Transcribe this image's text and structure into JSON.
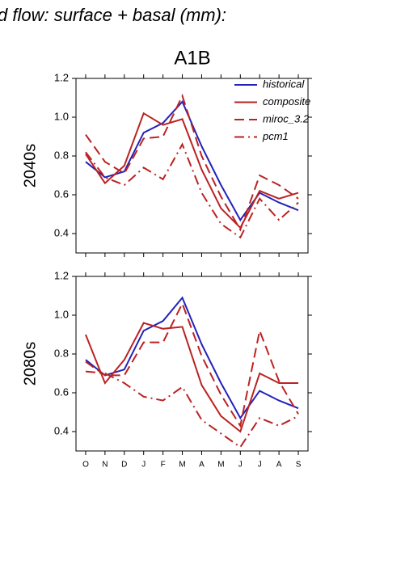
{
  "chart_data": {
    "type": "line",
    "title": "d flow: surface + basal (mm):",
    "subtitle": "A1B",
    "categories": [
      "O",
      "N",
      "D",
      "J",
      "F",
      "M",
      "A",
      "M",
      "J",
      "J",
      "A",
      "S"
    ],
    "legend": "upper right",
    "panels": [
      {
        "ylabel": "2040s",
        "ylim": [
          0.3,
          1.2
        ],
        "yticks": [
          0.4,
          0.6,
          0.8,
          {
            "value": 1,
            "label": "1.0"
          },
          1.2
        ],
        "series": [
          {
            "name": "historical",
            "color": "#2222bb",
            "linestyle": "solid",
            "values": [
              0.77,
              0.69,
              0.72,
              0.92,
              0.97,
              1.08,
              0.85,
              0.65,
              0.47,
              0.61,
              0.56,
              0.52
            ]
          },
          {
            "name": "composite",
            "color": "#bb2222",
            "linestyle": "solid",
            "values": [
              0.81,
              0.66,
              0.75,
              1.02,
              0.96,
              0.99,
              0.73,
              0.53,
              0.43,
              0.62,
              0.58,
              0.61
            ]
          },
          {
            "name": "miroc_3.2",
            "color": "#bb2222",
            "linestyle": "dashed",
            "values": [
              0.91,
              0.77,
              0.71,
              0.89,
              0.9,
              1.11,
              0.8,
              0.59,
              0.42,
              0.7,
              0.65,
              0.58
            ]
          },
          {
            "name": "pcm1",
            "color": "#bb2222",
            "linestyle": "dashdot",
            "values": [
              0.82,
              0.69,
              0.65,
              0.74,
              0.68,
              0.86,
              0.61,
              0.45,
              0.38,
              0.58,
              0.47,
              0.56
            ]
          }
        ]
      },
      {
        "ylabel": "2080s",
        "ylim": [
          0.3,
          1.2
        ],
        "yticks": [
          0.4,
          0.6,
          0.8,
          {
            "value": 1,
            "label": "1.0"
          },
          1.2
        ],
        "series": [
          {
            "color": "#2222bb",
            "linestyle": "solid",
            "values": [
              0.77,
              0.69,
              0.72,
              0.92,
              0.97,
              1.09,
              0.85,
              0.65,
              0.47,
              0.61,
              0.56,
              0.52
            ]
          },
          {
            "color": "#bb2222",
            "linestyle": "solid",
            "values": [
              0.9,
              0.65,
              0.77,
              0.96,
              0.93,
              0.94,
              0.64,
              0.48,
              0.4,
              0.7,
              0.65,
              0.65
            ]
          },
          {
            "color": "#bb2222",
            "linestyle": "dashed",
            "values": [
              0.76,
              0.69,
              0.69,
              0.86,
              0.86,
              1.06,
              0.79,
              0.59,
              0.43,
              0.92,
              0.66,
              0.49
            ]
          },
          {
            "color": "#bb2222",
            "linestyle": "dashdot",
            "values": [
              0.71,
              0.7,
              0.65,
              0.58,
              0.56,
              0.63,
              0.46,
              0.39,
              0.32,
              0.47,
              0.43,
              0.48
            ]
          }
        ]
      }
    ]
  }
}
